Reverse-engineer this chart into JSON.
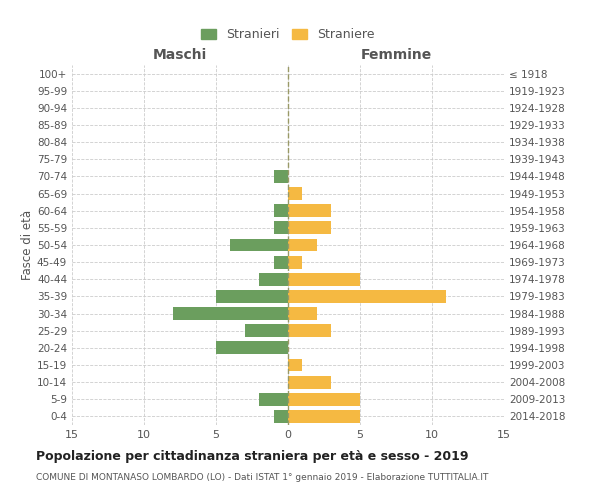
{
  "age_groups": [
    "100+",
    "95-99",
    "90-94",
    "85-89",
    "80-84",
    "75-79",
    "70-74",
    "65-69",
    "60-64",
    "55-59",
    "50-54",
    "45-49",
    "40-44",
    "35-39",
    "30-34",
    "25-29",
    "20-24",
    "15-19",
    "10-14",
    "5-9",
    "0-4"
  ],
  "birth_years": [
    "≤ 1918",
    "1919-1923",
    "1924-1928",
    "1929-1933",
    "1934-1938",
    "1939-1943",
    "1944-1948",
    "1949-1953",
    "1954-1958",
    "1959-1963",
    "1964-1968",
    "1969-1973",
    "1974-1978",
    "1979-1983",
    "1984-1988",
    "1989-1993",
    "1994-1998",
    "1999-2003",
    "2004-2008",
    "2009-2013",
    "2014-2018"
  ],
  "males": [
    0,
    0,
    0,
    0,
    0,
    0,
    1,
    0,
    1,
    1,
    4,
    1,
    2,
    5,
    8,
    3,
    5,
    0,
    0,
    2,
    1
  ],
  "females": [
    0,
    0,
    0,
    0,
    0,
    0,
    0,
    1,
    3,
    3,
    2,
    1,
    5,
    11,
    2,
    3,
    0,
    1,
    3,
    5,
    5
  ],
  "male_color": "#6b9e5e",
  "female_color": "#f5b942",
  "bar_height": 0.75,
  "xlim": 15,
  "title": "Popolazione per cittadinanza straniera per età e sesso - 2019",
  "subtitle": "COMUNE DI MONTANASO LOMBARDO (LO) - Dati ISTAT 1° gennaio 2019 - Elaborazione TUTTITALIA.IT",
  "ylabel_left": "Fasce di età",
  "xlabel_left": "Maschi",
  "xlabel_right": "Femmine",
  "legend_male": "Stranieri",
  "legend_female": "Straniere",
  "background_color": "#ffffff",
  "grid_color": "#cccccc",
  "centerline_color": "#999966",
  "tick_color": "#888888",
  "label_color": "#555555"
}
